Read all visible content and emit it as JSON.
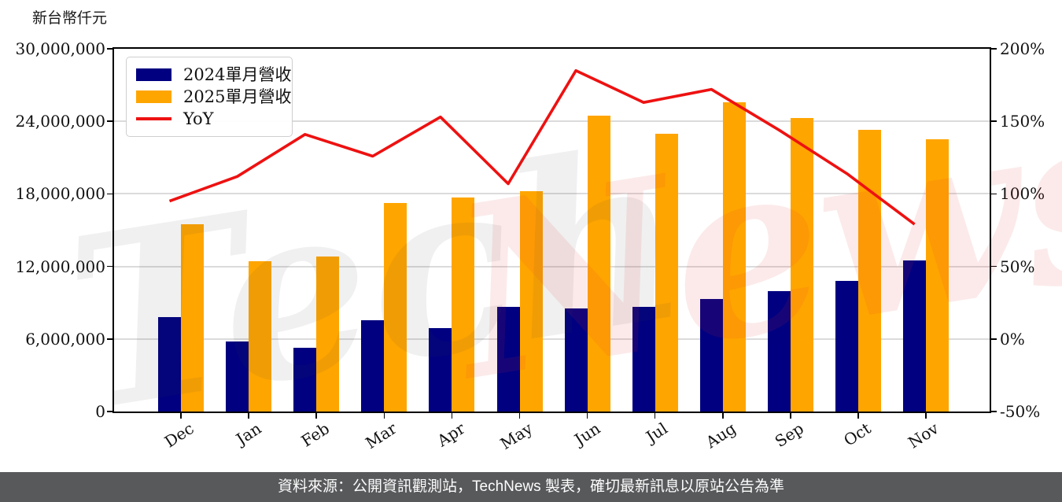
{
  "title": "新台幣仟元",
  "watermark": {
    "part1": "Tech",
    "part2": "News"
  },
  "footer": {
    "text": "資料來源：公開資訊觀測站，TechNews 製表，確切最新訊息以原站公告為準"
  },
  "legend": {
    "position": "upper-left",
    "items": [
      {
        "label": "2024單月營收",
        "swatch": "square",
        "color": "#000080"
      },
      {
        "label": "2025單月營收",
        "swatch": "square",
        "color": "#FFA500"
      },
      {
        "label": "YoY",
        "swatch": "line",
        "color": "#EE1111"
      }
    ]
  },
  "colors": {
    "bar_2024": "#000080",
    "bar_2025": "#FFA500",
    "yoy_line": "#EE1111",
    "gridline": "#dbdbdb",
    "footer_bg": "#58595b",
    "watermark_gray": "rgba(60,60,60,0.08)",
    "watermark_pink": "rgba(225,45,45,0.10)"
  },
  "chart_data": {
    "type": "bar",
    "categories": [
      "Dec",
      "Jan",
      "Feb",
      "Mar",
      "Apr",
      "May",
      "Jun",
      "Jul",
      "Aug",
      "Sep",
      "Oct",
      "Nov"
    ],
    "series": [
      {
        "name": "2024單月營收",
        "type": "bar",
        "axis": "left",
        "color": "#000080",
        "values": [
          7800000,
          5800000,
          5250000,
          7550000,
          6900000,
          8650000,
          8500000,
          8650000,
          9300000,
          9950000,
          10800000,
          12500000
        ]
      },
      {
        "name": "2025單月營收",
        "type": "bar",
        "axis": "left",
        "color": "#FFA500",
        "values": [
          15500000,
          12450000,
          12800000,
          17250000,
          17700000,
          18250000,
          24500000,
          23000000,
          25600000,
          24300000,
          23300000,
          22500000
        ]
      },
      {
        "name": "YoY",
        "type": "line",
        "axis": "right",
        "color": "#EE1111",
        "values": [
          95,
          112,
          141,
          126,
          153,
          107,
          185,
          163,
          172,
          144,
          114,
          79
        ]
      }
    ],
    "left_axis": {
      "label": "新台幣仟元",
      "min": 0,
      "max": 30000000,
      "ticks": [
        {
          "value": 0,
          "label": "0"
        },
        {
          "value": 6000000,
          "label": "6,000,000"
        },
        {
          "value": 12000000,
          "label": "12,000,000"
        },
        {
          "value": 18000000,
          "label": "18,000,000"
        },
        {
          "value": 24000000,
          "label": "24,000,000"
        },
        {
          "value": 30000000,
          "label": "30,000,000"
        }
      ]
    },
    "right_axis": {
      "label": "",
      "min": -50,
      "max": 200,
      "unit": "%",
      "ticks": [
        {
          "value": -50,
          "label": "-50%"
        },
        {
          "value": 0,
          "label": "0%"
        },
        {
          "value": 50,
          "label": "50%"
        },
        {
          "value": 100,
          "label": "100%"
        },
        {
          "value": 150,
          "label": "150%"
        },
        {
          "value": 200,
          "label": "200%"
        }
      ]
    },
    "grid": true,
    "legend_position": "upper left"
  }
}
